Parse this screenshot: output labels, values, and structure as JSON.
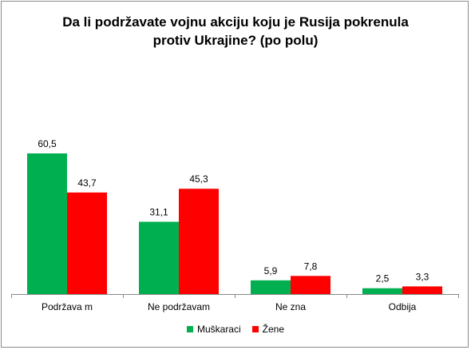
{
  "chart_data": {
    "type": "bar",
    "title": "Da li podržavate vojnu akciju koju je Rusija pokrenula\nprotiv Ukrajine? (po polu)",
    "categories": [
      "Podržava m",
      "Ne podržavam",
      "Ne zna",
      "Odbija"
    ],
    "series": [
      {
        "name": "Muškaraci",
        "color": "#00b050",
        "values": [
          60.5,
          31.1,
          5.9,
          2.5
        ]
      },
      {
        "name": "Žene",
        "color": "#ff0000",
        "values": [
          43.7,
          45.3,
          7.8,
          3.3
        ]
      }
    ],
    "value_labels": [
      [
        "60,5",
        "31,1",
        "5,9",
        "2,5"
      ],
      [
        "43,7",
        "45,3",
        "7,8",
        "3,3"
      ]
    ],
    "ylim": [
      0,
      70
    ],
    "grid": false,
    "legend": "bottom"
  }
}
